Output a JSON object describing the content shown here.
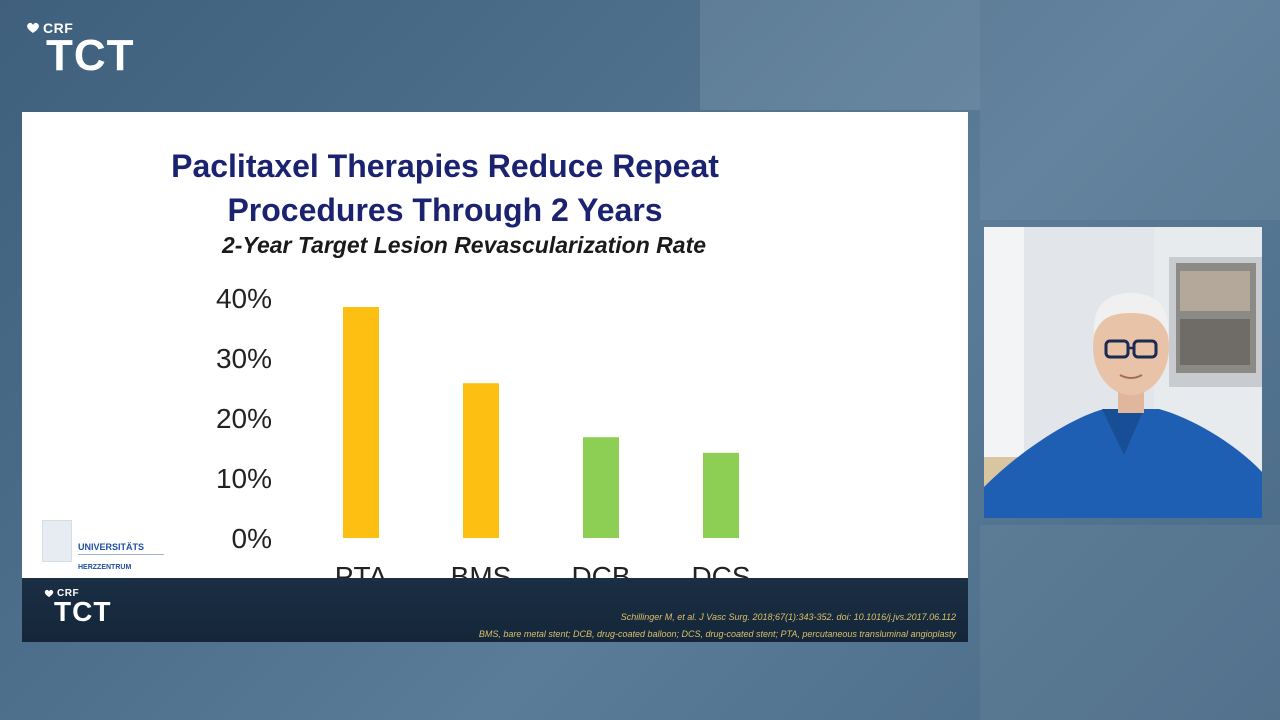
{
  "brand": {
    "org": "CRF",
    "event": "TCT"
  },
  "slide": {
    "title_line1": "Paclitaxel Therapies Reduce Repeat",
    "title_line2": "Procedures Through 2 Years",
    "subtitle": "2-Year Target Lesion Revascularization Rate",
    "institution_logo": {
      "line1": "UNIVERSITÄTS",
      "line2": "HERZZENTRUM"
    },
    "footer": {
      "org": "CRF",
      "event": "TCT",
      "reference": "Schillinger M, et al. J Vasc Surg. 2018;67(1):343-352. doi: 10.1016/j.jvs.2017.06.112",
      "abbreviations": "BMS, bare metal stent; DCB, drug-coated balloon; DCS, drug-coated stent; PTA, percutaneous transluminal angioplasty"
    }
  },
  "chart_data": {
    "type": "bar",
    "title": "",
    "categories": [
      "PTA",
      "BMS",
      "DCB",
      "DCS"
    ],
    "values": [
      38.5,
      25.8,
      16.8,
      14.2
    ],
    "bar_colors": [
      "#fdbf12",
      "#fdbf12",
      "#8ccf54",
      "#8ccf54"
    ],
    "yticks": [
      "0%",
      "10%",
      "20%",
      "30%",
      "40%"
    ],
    "ylim": [
      0,
      40
    ],
    "grid": false,
    "legend": false
  },
  "colors": {
    "title": "#1b2370",
    "bms_pta": "#fdbf12",
    "dcb_dcs": "#8ccf54",
    "background": "#4a6a86",
    "footer": "#1a2e44"
  },
  "webcam": {
    "label": "presenter-video-feed"
  }
}
